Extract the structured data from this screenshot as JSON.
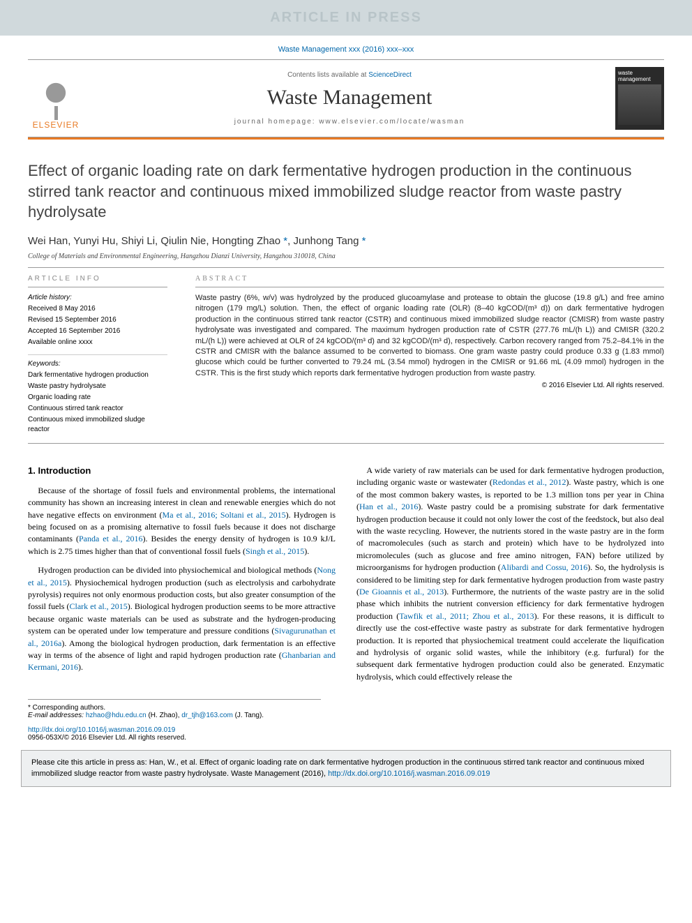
{
  "banner": {
    "text": "ARTICLE IN PRESS"
  },
  "citation_line": "Waste Management xxx (2016) xxx–xxx",
  "header": {
    "publisher": "ELSEVIER",
    "contents_prefix": "Contents lists available at ",
    "contents_link": "ScienceDirect",
    "journal": "Waste Management",
    "homepage_label": "journal homepage: ",
    "homepage_url": "www.elsevier.com/locate/wasman",
    "cover_title": "waste management"
  },
  "article": {
    "title": "Effect of organic loading rate on dark fermentative hydrogen production in the continuous stirred tank reactor and continuous mixed immobilized sludge reactor from waste pastry hydrolysate",
    "authors_plain": "Wei Han, Yunyi Hu, Shiyi Li, Qiulin Nie, Hongting Zhao",
    "authors_corr1": " *",
    "authors_sep": ", Junhong Tang",
    "authors_corr2": " *",
    "affiliation": "College of Materials and Environmental Engineering, Hangzhou Dianzi University, Hangzhou 310018, China"
  },
  "info": {
    "heading": "ARTICLE INFO",
    "history_label": "Article history:",
    "received": "Received 8 May 2016",
    "revised": "Revised 15 September 2016",
    "accepted": "Accepted 16 September 2016",
    "online": "Available online xxxx",
    "keywords_label": "Keywords:",
    "keywords": [
      "Dark fermentative hydrogen production",
      "Waste pastry hydrolysate",
      "Organic loading rate",
      "Continuous stirred tank reactor",
      "Continuous mixed immobilized sludge reactor"
    ]
  },
  "abstract": {
    "heading": "ABSTRACT",
    "text": "Waste pastry (6%, w/v) was hydrolyzed by the produced glucoamylase and protease to obtain the glucose (19.8 g/L) and free amino nitrogen (179 mg/L) solution. Then, the effect of organic loading rate (OLR) (8–40 kgCOD/(m³ d)) on dark fermentative hydrogen production in the continuous stirred tank reactor (CSTR) and continuous mixed immobilized sludge reactor (CMISR) from waste pastry hydrolysate was investigated and compared. The maximum hydrogen production rate of CSTR (277.76 mL/(h L)) and CMISR (320.2 mL/(h L)) were achieved at OLR of 24 kgCOD/(m³ d) and 32 kgCOD/(m³ d), respectively. Carbon recovery ranged from 75.2–84.1% in the CSTR and CMISR with the balance assumed to be converted to biomass. One gram waste pastry could produce 0.33 g (1.83 mmol) glucose which could be further converted to 79.24 mL (3.54 mmol) hydrogen in the CMISR or 91.66 mL (4.09 mmol) hydrogen in the CSTR. This is the first study which reports dark fermentative hydrogen production from waste pastry.",
    "copyright": "© 2016 Elsevier Ltd. All rights reserved."
  },
  "body": {
    "section_heading": "1. Introduction",
    "p1a": "Because of the shortage of fossil fuels and environmental problems, the international community has shown an increasing interest in clean and renewable energies which do not have negative effects on environment (",
    "p1r1": "Ma et al., 2016; Soltani et al., 2015",
    "p1b": "). Hydrogen is being focused on as a promising alternative to fossil fuels because it does not discharge contaminants (",
    "p1r2": "Panda et al., 2016",
    "p1c": "). Besides the energy density of hydrogen is 10.9 kJ/L which is 2.75 times higher than that of conventional fossil fuels (",
    "p1r3": "Singh et al., 2015",
    "p1d": ").",
    "p2a": "Hydrogen production can be divided into physiochemical and biological methods (",
    "p2r1": "Nong et al., 2015",
    "p2b": "). Physiochemical hydrogen production (such as electrolysis and carbohydrate pyrolysis) requires not only enormous production costs, but also greater consumption of the fossil fuels (",
    "p2r2": "Clark et al., 2015",
    "p2c": "). Biological hydrogen production seems to be more attractive because organic waste materials can be used as substrate and the hydrogen-producing system can be operated under low temperature and pressure conditions (",
    "p2r3": "Sivagurunathan et al., 2016a",
    "p2d": "). Among the biological hydrogen production, dark fermentation is an effective way in terms of the absence of light and rapid hydrogen production rate (",
    "p2r4": "Ghanbarian and Kermani, 2016",
    "p2e": ").",
    "p3a": "A wide variety of raw materials can be used for dark fermentative hydrogen production, including organic waste or wastewater (",
    "p3r1": "Redondas et al., 2012",
    "p3b": "). Waste pastry, which is one of the most common bakery wastes, is reported to be 1.3 million tons per year in China (",
    "p3r2": "Han et al., 2016",
    "p3c": "). Waste pastry could be a promising substrate for dark fermentative hydrogen production because it could not only lower the cost of the feedstock, but also deal with the waste recycling. However, the nutrients stored in the waste pastry are in the form of macromolecules (such as starch and protein) which have to be hydrolyzed into micromolecules (such as glucose and free amino nitrogen, FAN) before utilized by microorganisms for hydrogen production (",
    "p3r3": "Alibardi and Cossu, 2016",
    "p3d": "). So, the hydrolysis is considered to be limiting step for dark fermentative hydrogen production from waste pastry (",
    "p3r4": "De Gioannis et al., 2013",
    "p3e": "). Furthermore, the nutrients of the waste pastry are in the solid phase which inhibits the nutrient conversion efficiency for dark fermentative hydrogen production (",
    "p3r5": "Tawfik et al., 2011; Zhou et al., 2013",
    "p3f": "). For these reasons, it is difficult to directly use the cost-effective waste pastry as substrate for dark fermentative hydrogen production. It is reported that physiochemical treatment could accelerate the liquification and hydrolysis of organic solid wastes, while the inhibitory (e.g. furfural) for the subsequent dark fermentative hydrogen production could also be generated. Enzymatic hydrolysis, which could effectively release the"
  },
  "footnotes": {
    "corr_label": "* Corresponding authors.",
    "email_label": "E-mail addresses: ",
    "email1": "hzhao@hdu.edu.cn",
    "email1_who": " (H. Zhao), ",
    "email2": "dr_tjh@163.com",
    "email2_who": " (J. Tang)."
  },
  "doi": {
    "url": "http://dx.doi.org/10.1016/j.wasman.2016.09.019",
    "issn_line": "0956-053X/© 2016 Elsevier Ltd. All rights reserved."
  },
  "citebox": {
    "prefix": "Please cite this article in press as: Han, W., et al. Effect of organic loading rate on dark fermentative hydrogen production in the continuous stirred tank reactor and continuous mixed immobilized sludge reactor from waste pastry hydrolysate. Waste Management (2016), ",
    "link": "http://dx.doi.org/10.1016/j.wasman.2016.09.019"
  },
  "colors": {
    "banner_bg": "#d0d9dc",
    "banner_fg": "#b8c4c8",
    "link": "#0066aa",
    "accent": "#e87a24",
    "rule": "#999999",
    "citebox_bg": "#eef0f1"
  }
}
